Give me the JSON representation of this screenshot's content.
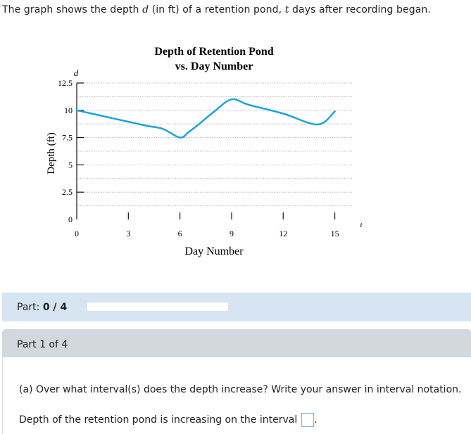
{
  "prompt": {
    "prefix": "The graph shows the depth ",
    "var_d": "d",
    "middle": " (in ft) of a retention pond, ",
    "var_t": "t",
    "suffix": " days after recording began."
  },
  "chart_data": {
    "type": "line",
    "title_line1": "Depth of Retention Pond",
    "title_line2": "vs. Day Number",
    "xlabel": "Day Number",
    "ylabel": "Depth (ft)",
    "x_axis_var": "t",
    "y_axis_var": "d",
    "xlim": [
      0,
      16
    ],
    "ylim": [
      0,
      12.5
    ],
    "x_ticks": [
      0,
      3,
      6,
      9,
      12,
      15
    ],
    "x_tick_labels": [
      "0",
      "3",
      "6",
      "9",
      "12",
      "15"
    ],
    "y_ticks": [
      0,
      2.5,
      5,
      7.5,
      10,
      12.5
    ],
    "y_tick_labels": [
      "0",
      "2.5",
      "5",
      "7.5",
      "10",
      "12.5"
    ],
    "grid": true,
    "line_color": "#1fa1e0",
    "series": [
      {
        "x": [
          0,
          2,
          4,
          5,
          6,
          6.5,
          7,
          8,
          9,
          10,
          12,
          14,
          15
        ],
        "y": [
          10,
          9.3,
          8.6,
          8.3,
          7.5,
          8,
          8.6,
          9.9,
          11,
          10.5,
          9.7,
          8.7,
          9.9
        ]
      }
    ]
  },
  "progress": {
    "label_prefix": "Part: ",
    "current": "0",
    "sep": " / ",
    "total": "4",
    "fraction": 0
  },
  "part": {
    "header": "Part 1 of 4",
    "question": "(a) Over what interval(s) does the depth increase? Write your answer in interval notation.",
    "answer_label": "Depth of the retention pond is increasing on the interval",
    "answer_value": "",
    "answer_suffix": "."
  },
  "colors": {
    "progress_bg": "#d6e5f1",
    "part_header_bg": "#d2d8de",
    "answer_border": "#7fb2e0"
  }
}
